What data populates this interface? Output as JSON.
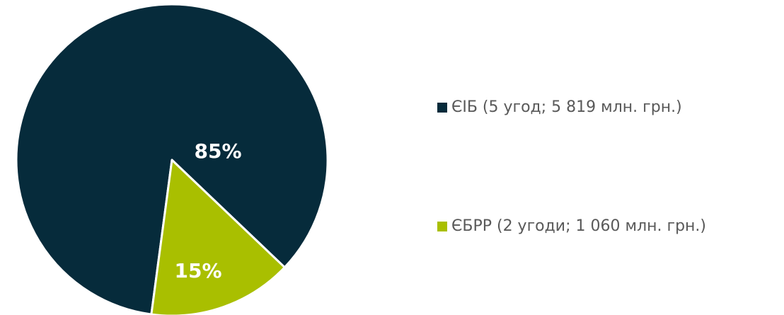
{
  "chart_data": {
    "type": "pie",
    "categories": [
      "ЄІБ (5 угод; 5 819 млн. грн.)",
      "ЄБРР (2 угоди; 1 060 млн. грн.)"
    ],
    "values": [
      85,
      15
    ],
    "value_labels": [
      "85%",
      "15%"
    ],
    "colors": [
      "#062b3b",
      "#a9bf00"
    ],
    "legend": "right"
  }
}
